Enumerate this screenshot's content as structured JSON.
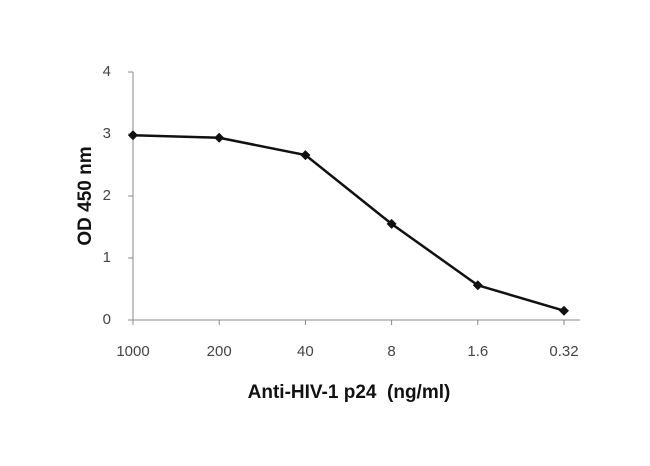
{
  "chart_data": {
    "type": "line",
    "categories": [
      "1000",
      "200",
      "40",
      "8",
      "1.6",
      "0.32"
    ],
    "values": [
      2.98,
      2.94,
      2.66,
      1.55,
      0.56,
      0.15
    ],
    "color": "#111111",
    "x_label": "Anti-HIV-1 p24  (ng/ml)",
    "y_label": "OD 450 nm",
    "ylim": [
      0,
      4
    ],
    "yticks": [
      0,
      1,
      2,
      3,
      4
    ],
    "grid": false
  }
}
